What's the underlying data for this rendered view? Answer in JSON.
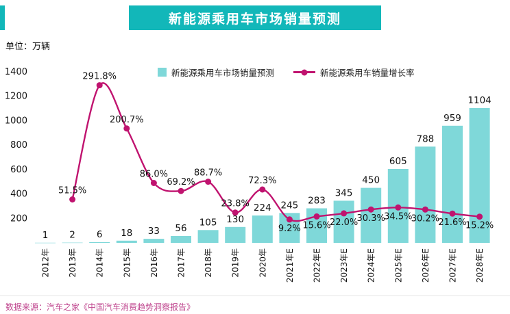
{
  "header": {
    "title": "新能源乘用车市场销量预测"
  },
  "unit_label": "单位：万辆",
  "legend": {
    "bar_label": "新能源乘用车市场销量预测",
    "line_label": "新能源乘用车销量增长率"
  },
  "source": "数据来源：汽车之家《中国汽车消费趋势洞察报告》",
  "colors": {
    "teal": "#12b7b9",
    "bar": "#7fd8d9",
    "line": "#c0136f",
    "source_text": "#c0478f",
    "label_text": "#111111"
  },
  "chart_data": {
    "type": "bar",
    "subtype": "bar-line-combo",
    "title": "新能源乘用车市场销量预测",
    "categories": [
      "2012年",
      "2013年",
      "2014年",
      "2015年",
      "2016年",
      "2017年",
      "2018年",
      "2019年",
      "2020年",
      "2021年E",
      "2022年E",
      "2023年E",
      "2024年E",
      "2025年E",
      "2026年E",
      "2027年E",
      "2028年E"
    ],
    "series": [
      {
        "name": "新能源乘用车市场销量预测",
        "type": "bar",
        "axis": "left",
        "unit": "万辆",
        "values": [
          1,
          2,
          6,
          18,
          33,
          56,
          105,
          130,
          224,
          245,
          283,
          345,
          450,
          605,
          788,
          959,
          1104
        ]
      },
      {
        "name": "新能源乘用车销量增长率",
        "type": "line",
        "axis": "right",
        "unit": "%",
        "values": [
          null,
          51.5,
          291.8,
          200.7,
          86.0,
          69.2,
          88.7,
          23.8,
          72.3,
          9.2,
          15.6,
          22.0,
          30.3,
          34.5,
          30.2,
          21.6,
          15.2
        ]
      }
    ],
    "line_labels": [
      "",
      "51.5%",
      "291.8%",
      "200.7%",
      "86.0%",
      "69.2%",
      "88.7%",
      "23.8%",
      "72.3%",
      "9.2%",
      "15.6%",
      "22.0%",
      "30.3%",
      "34.5%",
      "30.2%",
      "21.6%",
      "15.2%"
    ],
    "left_axis": {
      "label": "万辆",
      "min": 0,
      "max": 1400,
      "ticks": [
        200,
        400,
        600,
        800,
        1000,
        1200,
        1400
      ]
    },
    "right_axis": {
      "min": -40,
      "max": 320,
      "visible": false
    },
    "grid": false,
    "legend_position": "top"
  }
}
